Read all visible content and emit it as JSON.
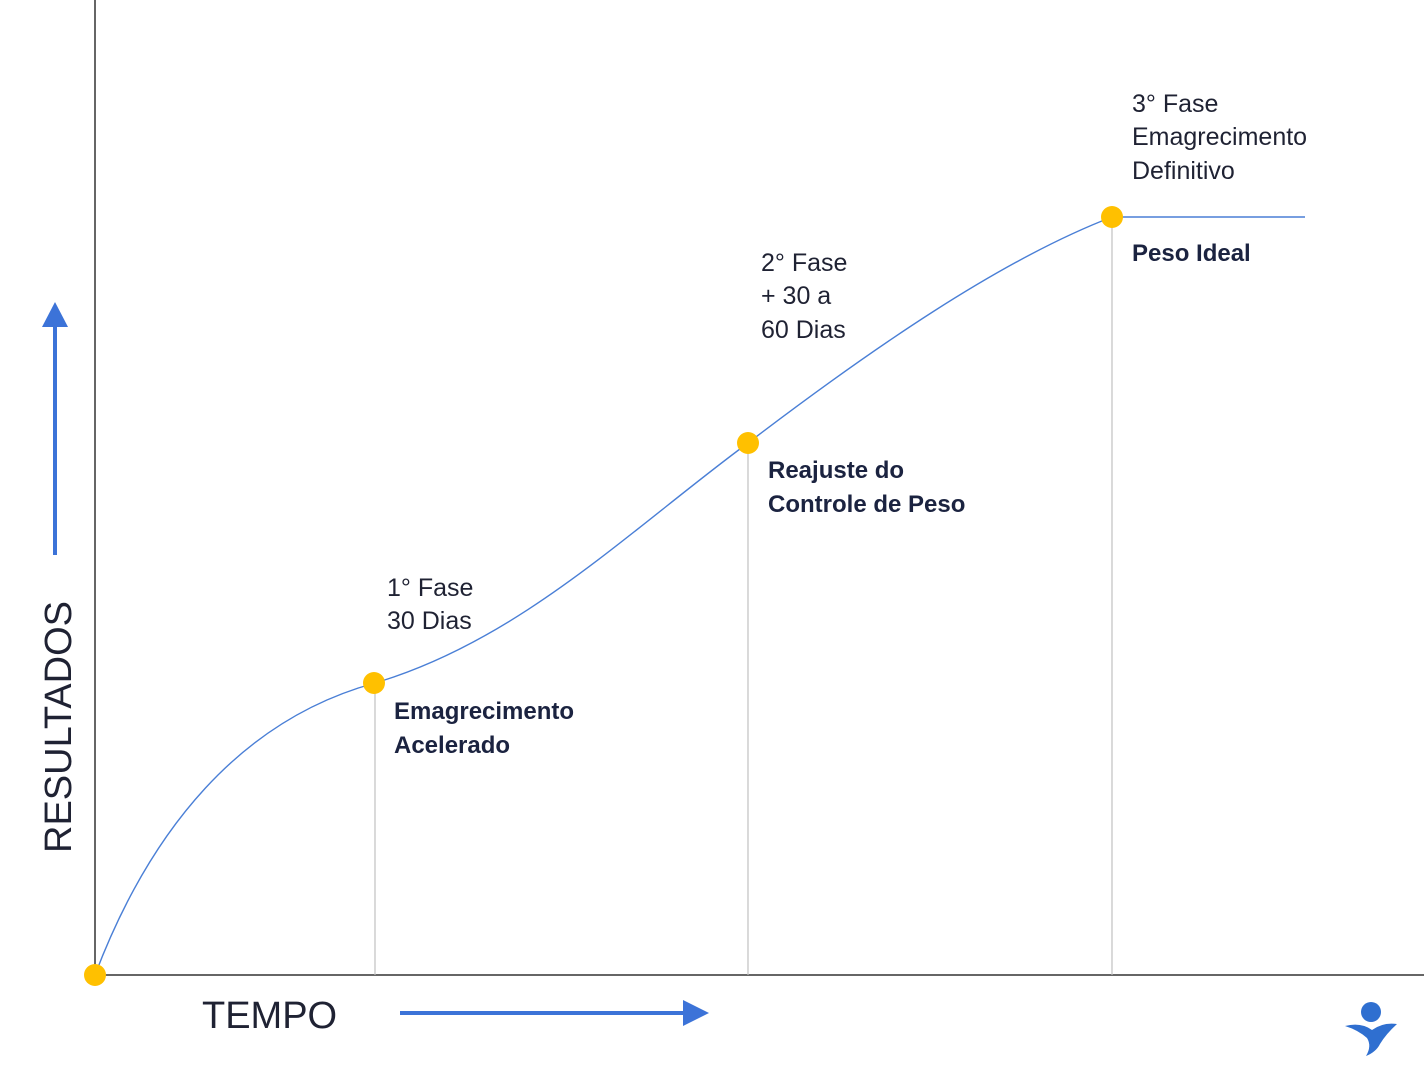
{
  "axes": {
    "x_label": "TEMPO",
    "y_label": "RESULTADOS"
  },
  "points": [
    {
      "id": "start",
      "phase": [],
      "name": []
    },
    {
      "id": "fase-1",
      "phase": [
        "1° Fase",
        "30 Dias"
      ],
      "name": [
        "Emagrecimento",
        "Acelerado"
      ]
    },
    {
      "id": "fase-2",
      "phase": [
        "2° Fase",
        "+ 30 a",
        "60 Dias"
      ],
      "name": [
        "Reajuste do",
        "Controle de Peso"
      ]
    },
    {
      "id": "fase-3",
      "phase": [
        "3° Fase",
        "Emagrecimento",
        "Definitivo"
      ],
      "name": [
        "Peso Ideal"
      ]
    }
  ],
  "colors": {
    "curve": "#4a7fd6",
    "marker": "#ffc000",
    "arrow": "#3c73d8",
    "axis": "#333333",
    "guide": "#c0c0c0",
    "text": "#1f2233",
    "name_text": "#1b2340",
    "logo": "#2f6fd0"
  },
  "logo": {
    "icon": "person-logo-icon"
  }
}
